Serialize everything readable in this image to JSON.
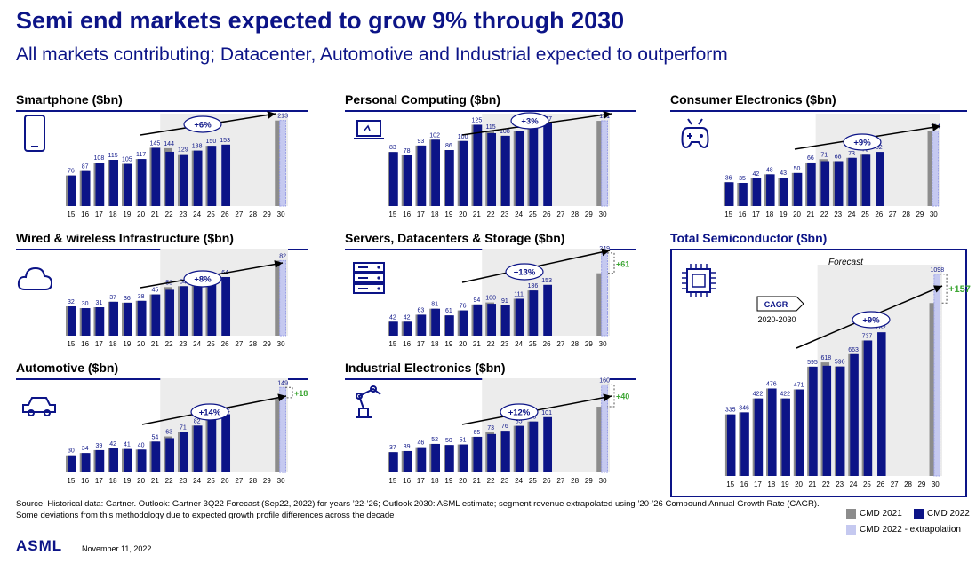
{
  "title": "Semi end markets expected to grow 9% through 2030",
  "subtitle": "All markets contributing; Datacenter, Automotive and Industrial expected to outperform",
  "source": "Source: Historical data: Gartner. Outlook: Gartner 3Q22 Forecast (Sep22, 2022) for years ’22-’26; Outlook 2030: ASML estimate; segment revenue extrapolated using ’20-’26 Compound Annual Growth Rate (CAGR). Some deviations from this methodology due to expected growth profile differences across the decade",
  "logo": "ASML",
  "date": "November 11, 2022",
  "colors": {
    "cmd2021": "#8c8c8c",
    "cmd2022": "#0c1487",
    "extrapolation": "#c5c9f0",
    "green": "#3ca633",
    "shade": "#ececec"
  },
  "legend": {
    "cmd2021": "CMD 2021",
    "cmd2022": "CMD 2022",
    "extrapolation": "CMD 2022 - extrapolation"
  },
  "total_extra": {
    "forecast": "Forecast",
    "cagr": "CAGR",
    "cagr_period": "2020-2030"
  },
  "chart_data": [
    {
      "id": "smartphone",
      "type": "bar",
      "icon": "smartphone-icon",
      "title": "Smartphone ($bn)",
      "categories": [
        "15",
        "16",
        "17",
        "18",
        "19",
        "20",
        "21",
        "22",
        "23",
        "24",
        "25",
        "26",
        "27",
        "28",
        "29",
        "30"
      ],
      "series": [
        {
          "name": "CMD 2021",
          "values": [
            76,
            87,
            108,
            115,
            105,
            117,
            145,
            144,
            129,
            138,
            150,
            null,
            null,
            null,
            null,
            213
          ]
        },
        {
          "name": "CMD 2022",
          "values": [
            76,
            87,
            108,
            115,
            105,
            117,
            145,
            135,
            129,
            138,
            150,
            153,
            null,
            null,
            null,
            null
          ]
        },
        {
          "name": "CMD 2022 - extrapolation",
          "values": [
            null,
            null,
            null,
            null,
            null,
            null,
            null,
            null,
            null,
            null,
            null,
            null,
            null,
            null,
            null,
            213
          ]
        }
      ],
      "labels": [
        "76",
        "87",
        "108",
        "115",
        "105",
        "117",
        "145",
        "144",
        "129",
        "138",
        "150",
        "153",
        "",
        "",
        "",
        "213"
      ],
      "cagr": "+6%",
      "delta": ""
    },
    {
      "id": "personal-computing",
      "type": "bar",
      "icon": "laptop-icon",
      "title": "Personal Computing ($bn)",
      "categories": [
        "15",
        "16",
        "17",
        "18",
        "19",
        "20",
        "21",
        "22",
        "23",
        "24",
        "25",
        "26",
        "27",
        "28",
        "29",
        "30"
      ],
      "series": [
        {
          "name": "CMD 2021",
          "values": [
            83,
            78,
            93,
            102,
            86,
            100,
            125,
            115,
            108,
            116,
            124,
            null,
            null,
            null,
            null,
            131
          ]
        },
        {
          "name": "CMD 2022",
          "values": [
            83,
            78,
            93,
            102,
            86,
            100,
            125,
            112,
            108,
            116,
            124,
            127,
            null,
            null,
            null,
            null
          ]
        },
        {
          "name": "CMD 2022 - extrapolation",
          "values": [
            null,
            null,
            null,
            null,
            null,
            null,
            null,
            null,
            null,
            null,
            null,
            null,
            null,
            null,
            null,
            131
          ]
        }
      ],
      "labels": [
        "83",
        "78",
        "93",
        "102",
        "86",
        "100",
        "125",
        "115",
        "108",
        "116",
        "124",
        "127",
        "",
        "",
        "",
        "131"
      ],
      "cagr": "+3%",
      "delta": ""
    },
    {
      "id": "consumer-electronics",
      "type": "bar",
      "icon": "gamepad-icon",
      "title": "Consumer Electronics ($bn)",
      "categories": [
        "15",
        "16",
        "17",
        "18",
        "19",
        "20",
        "21",
        "22",
        "23",
        "24",
        "25",
        "26",
        "27",
        "28",
        "29",
        "30"
      ],
      "series": [
        {
          "name": "CMD 2021",
          "values": [
            36,
            35,
            42,
            48,
            43,
            50,
            66,
            71,
            68,
            73,
            79,
            null,
            null,
            null,
            null,
            114
          ]
        },
        {
          "name": "CMD 2022",
          "values": [
            36,
            35,
            42,
            48,
            43,
            50,
            66,
            68,
            68,
            73,
            79,
            82,
            null,
            null,
            null,
            null
          ]
        },
        {
          "name": "CMD 2022 - extrapolation",
          "values": [
            null,
            null,
            null,
            null,
            null,
            null,
            null,
            null,
            null,
            null,
            null,
            null,
            null,
            null,
            null,
            114
          ]
        }
      ],
      "labels": [
        "36",
        "35",
        "42",
        "48",
        "43",
        "50",
        "66",
        "71",
        "68",
        "73",
        "79",
        "82",
        "",
        "",
        "",
        "114"
      ],
      "cagr": "+9%",
      "delta": ""
    },
    {
      "id": "wired-wireless",
      "type": "bar",
      "icon": "cloud-icon",
      "title": "Wired & wireless Infrastructure ($bn)",
      "categories": [
        "15",
        "16",
        "17",
        "18",
        "19",
        "20",
        "21",
        "22",
        "23",
        "24",
        "25",
        "26",
        "27",
        "28",
        "29",
        "30"
      ],
      "series": [
        {
          "name": "CMD 2021",
          "values": [
            32,
            30,
            31,
            37,
            36,
            38,
            45,
            53,
            54,
            57,
            62,
            null,
            null,
            null,
            null,
            82
          ]
        },
        {
          "name": "CMD 2022",
          "values": [
            32,
            30,
            31,
            37,
            36,
            38,
            45,
            50,
            54,
            57,
            62,
            64,
            null,
            null,
            null,
            null
          ]
        },
        {
          "name": "CMD 2022 - extrapolation",
          "values": [
            null,
            null,
            null,
            null,
            null,
            null,
            null,
            null,
            null,
            null,
            null,
            null,
            null,
            null,
            null,
            82
          ]
        }
      ],
      "labels": [
        "32",
        "30",
        "31",
        "37",
        "36",
        "38",
        "45",
        "53",
        "54",
        "57",
        "62",
        "64",
        "",
        "",
        "",
        "82"
      ],
      "cagr": "+8%",
      "delta": ""
    },
    {
      "id": "servers-datacenters",
      "type": "bar",
      "icon": "server-icon",
      "title": "Servers, Datacenters & Storage ($bn)",
      "categories": [
        "15",
        "16",
        "17",
        "18",
        "19",
        "20",
        "21",
        "22",
        "23",
        "24",
        "25",
        "26",
        "27",
        "28",
        "29",
        "30"
      ],
      "series": [
        {
          "name": "CMD 2021",
          "values": [
            42,
            42,
            63,
            81,
            61,
            76,
            94,
            100,
            91,
            111,
            136,
            null,
            null,
            null,
            null,
            188
          ]
        },
        {
          "name": "CMD 2022",
          "values": [
            42,
            42,
            63,
            81,
            61,
            76,
            94,
            96,
            91,
            111,
            136,
            153,
            null,
            null,
            null,
            null
          ]
        },
        {
          "name": "CMD 2022 - extrapolation",
          "values": [
            null,
            null,
            null,
            null,
            null,
            null,
            null,
            null,
            null,
            null,
            null,
            null,
            null,
            null,
            null,
            249
          ]
        }
      ],
      "labels": [
        "42",
        "42",
        "63",
        "81",
        "61",
        "76",
        "94",
        "100",
        "91",
        "111",
        "136",
        "153",
        "",
        "",
        "",
        "249"
      ],
      "cagr": "+13%",
      "delta": "+61"
    },
    {
      "id": "automotive",
      "type": "bar",
      "icon": "car-icon",
      "title": "Automotive ($bn)",
      "categories": [
        "15",
        "16",
        "17",
        "18",
        "19",
        "20",
        "21",
        "22",
        "23",
        "24",
        "25",
        "26",
        "27",
        "28",
        "29",
        "30"
      ],
      "series": [
        {
          "name": "CMD 2021",
          "values": [
            30,
            34,
            39,
            42,
            41,
            40,
            54,
            63,
            71,
            82,
            93,
            null,
            null,
            null,
            null,
            131
          ]
        },
        {
          "name": "CMD 2022",
          "values": [
            30,
            34,
            39,
            42,
            41,
            40,
            54,
            60,
            71,
            82,
            93,
            102,
            null,
            null,
            null,
            null
          ]
        },
        {
          "name": "CMD 2022 - extrapolation",
          "values": [
            null,
            null,
            null,
            null,
            null,
            null,
            null,
            null,
            null,
            null,
            null,
            null,
            null,
            null,
            null,
            149
          ]
        }
      ],
      "labels": [
        "30",
        "34",
        "39",
        "42",
        "41",
        "40",
        "54",
        "63",
        "71",
        "82",
        "93",
        "102",
        "",
        "",
        "",
        "149"
      ],
      "cagr": "+14%",
      "delta": "+18"
    },
    {
      "id": "industrial-electronics",
      "type": "bar",
      "icon": "robot-arm-icon",
      "title": "Industrial Electronics ($bn)",
      "categories": [
        "15",
        "16",
        "17",
        "18",
        "19",
        "20",
        "21",
        "22",
        "23",
        "24",
        "25",
        "26",
        "27",
        "28",
        "29",
        "30"
      ],
      "series": [
        {
          "name": "CMD 2021",
          "values": [
            37,
            39,
            46,
            52,
            50,
            51,
            65,
            73,
            76,
            85,
            93,
            null,
            null,
            null,
            null,
            120
          ]
        },
        {
          "name": "CMD 2022",
          "values": [
            37,
            39,
            46,
            52,
            50,
            51,
            65,
            70,
            76,
            85,
            93,
            101,
            null,
            null,
            null,
            null
          ]
        },
        {
          "name": "CMD 2022 - extrapolation",
          "values": [
            null,
            null,
            null,
            null,
            null,
            null,
            null,
            null,
            null,
            null,
            null,
            null,
            null,
            null,
            null,
            160
          ]
        }
      ],
      "labels": [
        "37",
        "39",
        "46",
        "52",
        "50",
        "51",
        "65",
        "73",
        "76",
        "85",
        "93",
        "101",
        "",
        "",
        "",
        "160"
      ],
      "cagr": "+12%",
      "delta": "+40"
    },
    {
      "id": "total-semiconductor",
      "type": "bar",
      "icon": "chip-icon",
      "title": "Total Semiconductor ($bn)",
      "categories": [
        "15",
        "16",
        "17",
        "18",
        "19",
        "20",
        "21",
        "22",
        "23",
        "24",
        "25",
        "26",
        "27",
        "28",
        "29",
        "30"
      ],
      "series": [
        {
          "name": "CMD 2021",
          "values": [
            335,
            346,
            422,
            476,
            422,
            471,
            595,
            618,
            596,
            663,
            737,
            null,
            null,
            null,
            null,
            941
          ]
        },
        {
          "name": "CMD 2022",
          "values": [
            335,
            346,
            422,
            476,
            422,
            471,
            595,
            600,
            596,
            663,
            737,
            782,
            null,
            null,
            null,
            null
          ]
        },
        {
          "name": "CMD 2022 - extrapolation",
          "values": [
            null,
            null,
            null,
            null,
            null,
            null,
            null,
            null,
            null,
            null,
            null,
            null,
            null,
            null,
            null,
            1098
          ]
        }
      ],
      "labels": [
        "335",
        "346",
        "422",
        "476",
        "422",
        "471",
        "595",
        "618",
        "596",
        "663",
        "737",
        "782",
        "",
        "",
        "",
        "1098"
      ],
      "cagr": "+9%",
      "delta": "+157"
    }
  ]
}
